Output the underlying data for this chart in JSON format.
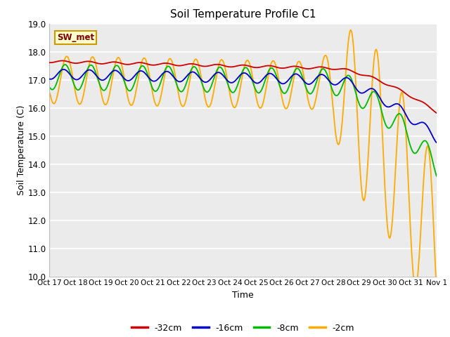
{
  "title": "Soil Temperature Profile C1",
  "xlabel": "Time",
  "ylabel": "Soil Temperature (C)",
  "ylim": [
    10.0,
    19.0
  ],
  "yticks": [
    10.0,
    11.0,
    12.0,
    13.0,
    14.0,
    15.0,
    16.0,
    17.0,
    18.0,
    19.0
  ],
  "xtick_labels": [
    "Oct 17",
    "Oct 18",
    "Oct 19",
    "Oct 20",
    "Oct 21",
    "Oct 22",
    "Oct 23",
    "Oct 24",
    "Oct 25",
    "Oct 26",
    "Oct 27",
    "Oct 28",
    "Oct 29",
    "Oct 30",
    "Oct 31",
    "Nov 1"
  ],
  "colors": {
    "-32cm": "#cc0000",
    "-16cm": "#0000cc",
    "-8cm": "#00bb00",
    "-2cm": "#ffaa00"
  },
  "fig_bg": "#ffffff",
  "plot_bg": "#ebebeb",
  "grid_color": "#ffffff"
}
